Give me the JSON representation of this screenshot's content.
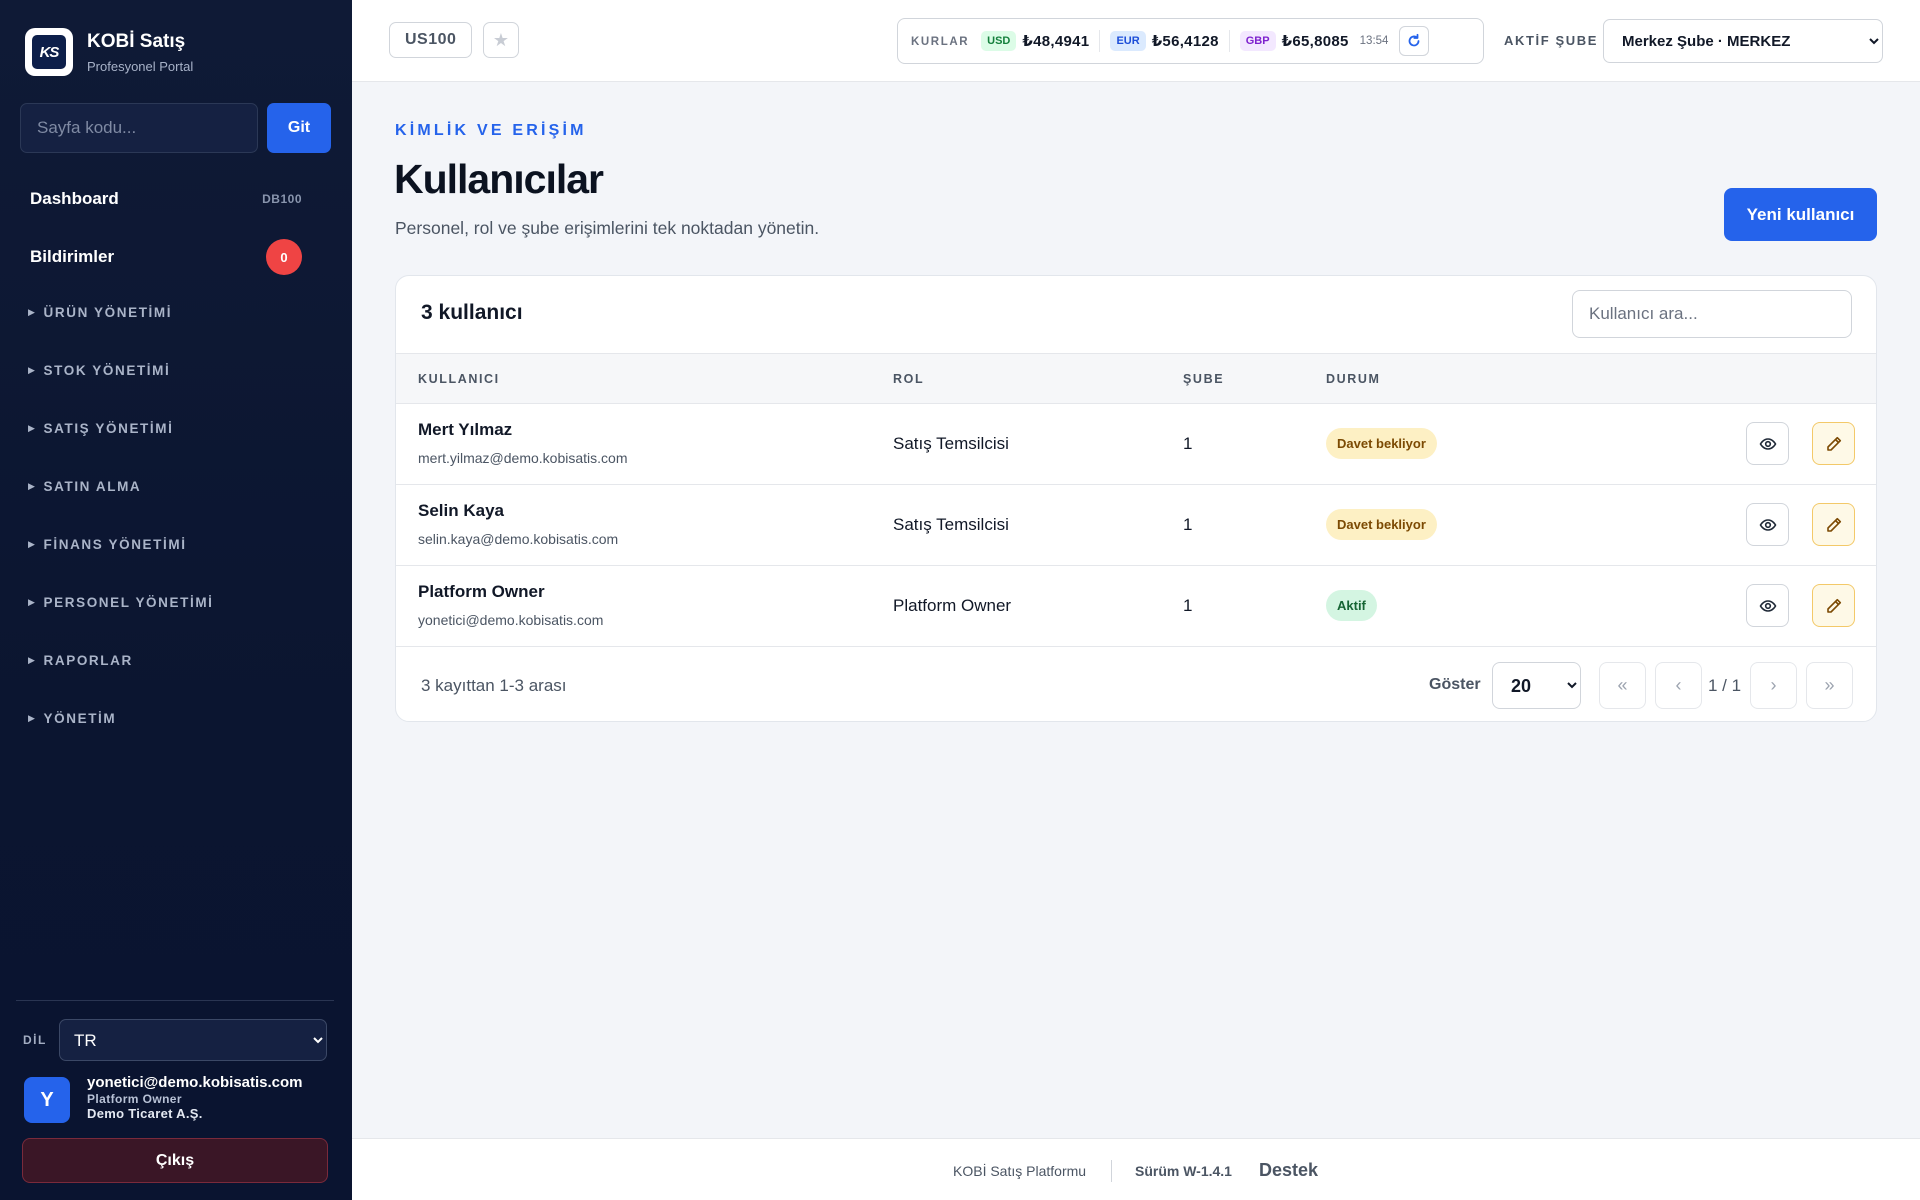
{
  "app": {
    "logo_text": "KS",
    "title": "KOBİ Satış",
    "subtitle": "Profesyonel Portal"
  },
  "sidebar": {
    "page_code_placeholder": "Sayfa kodu...",
    "go_label": "Git",
    "dashboard": {
      "label": "Dashboard",
      "code": "DB100"
    },
    "notifications": {
      "label": "Bildirimler",
      "count": "0"
    },
    "groups": [
      "ÜRÜN YÖNETİMİ",
      "STOK YÖNETİMİ",
      "SATIŞ YÖNETİMİ",
      "SATIN ALMA",
      "FİNANS YÖNETİMİ",
      "PERSONEL YÖNETİMİ",
      "RAPORLAR",
      "YÖNETİM"
    ],
    "language_label": "DİL",
    "language_value": "TR",
    "user": {
      "initial": "Y",
      "email": "yonetici@demo.kobisatis.com",
      "role": "Platform Owner",
      "company": "Demo Ticaret A.Ş."
    },
    "logout_label": "Çıkış"
  },
  "topbar": {
    "page_code": "US100",
    "rates_label": "KURLAR",
    "rates": [
      {
        "code": "USD",
        "value": "₺48,4941",
        "bg": "#dcfce7",
        "fg": "#15803d"
      },
      {
        "code": "EUR",
        "value": "₺56,4128",
        "bg": "#dbeafe",
        "fg": "#1d4ed8"
      },
      {
        "code": "GBP",
        "value": "₺65,8085",
        "bg": "#f3e8ff",
        "fg": "#7e22ce"
      }
    ],
    "rates_time": "13:54",
    "branch_label": "AKTİF ŞUBE",
    "branch_value": "Merkez Şube · MERKEZ"
  },
  "main": {
    "eyebrow": "KİMLİK VE ERİŞİM",
    "title": "Kullanıcılar",
    "description": "Personel, rol ve şube erişimlerini tek noktadan yönetin.",
    "new_user_label": "Yeni kullanıcı",
    "card": {
      "title": "3 kullanıcı",
      "search_placeholder": "Kullanıcı ara...",
      "columns": {
        "user": "KULLANICI",
        "role": "ROL",
        "branch": "ŞUBE",
        "status": "DURUM"
      },
      "rows": [
        {
          "name": "Mert Yılmaz",
          "email": "mert.yilmaz@demo.kobisatis.com",
          "role": "Satış Temsilcisi",
          "branch": "1",
          "status": "Davet bekliyor",
          "status_type": "pending"
        },
        {
          "name": "Selin Kaya",
          "email": "selin.kaya@demo.kobisatis.com",
          "role": "Satış Temsilcisi",
          "branch": "1",
          "status": "Davet bekliyor",
          "status_type": "pending"
        },
        {
          "name": "Platform Owner",
          "email": "yonetici@demo.kobisatis.com",
          "role": "Platform Owner",
          "branch": "1",
          "status": "Aktif",
          "status_type": "active"
        }
      ],
      "footer": {
        "count_text": "3 kayıttan 1-3 arası",
        "show_label": "Göster",
        "page_size": "20",
        "page_info": "1 / 1",
        "first": "«",
        "prev": "‹",
        "next": "›",
        "last": "»"
      }
    }
  },
  "footer": {
    "platform": "KOBİ Satış Platformu",
    "version": "Sürüm W-1.4.1",
    "support": "Destek"
  }
}
